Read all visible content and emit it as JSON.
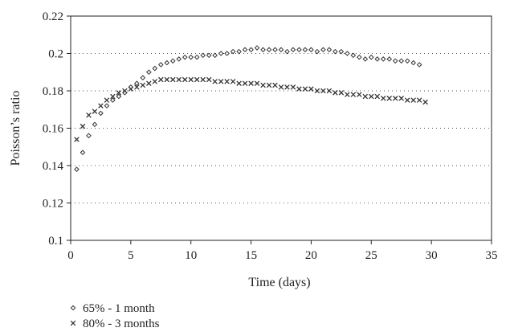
{
  "chart_data": {
    "type": "scatter",
    "xlabel": "Time (days)",
    "ylabel": "Poisson’s ratio",
    "xlim": [
      0,
      35
    ],
    "ylim": [
      0.1,
      0.22
    ],
    "xticks": [
      0,
      5,
      10,
      15,
      20,
      25,
      30,
      35
    ],
    "yticks": [
      0.1,
      0.12,
      0.14,
      0.16,
      0.18,
      0.2,
      0.22
    ],
    "xtick_labels": [
      "0",
      "5",
      "10",
      "15",
      "20",
      "25",
      "30",
      "35"
    ],
    "ytick_labels": [
      "0.1",
      "0.12",
      "0.14",
      "0.16",
      "0.18",
      "0.2",
      "0.22"
    ],
    "grid": "horizontal dotted",
    "legend_position": "bottom-left",
    "series": [
      {
        "name": "65% - 1 month",
        "marker": "diamond",
        "color": "#333333",
        "x": [
          0.5,
          1.0,
          1.5,
          2.0,
          2.5,
          3.0,
          3.5,
          4.0,
          4.5,
          5.0,
          5.5,
          6.0,
          6.5,
          7.0,
          7.5,
          8.0,
          8.5,
          9.0,
          9.5,
          10.0,
          10.5,
          11.0,
          11.5,
          12.0,
          12.5,
          13.0,
          13.5,
          14.0,
          14.5,
          15.0,
          15.5,
          16.0,
          16.5,
          17.0,
          17.5,
          18.0,
          18.5,
          19.0,
          19.5,
          20.0,
          20.5,
          21.0,
          21.5,
          22.0,
          22.5,
          23.0,
          23.5,
          24.0,
          24.5,
          25.0,
          25.5,
          26.0,
          26.5,
          27.0,
          27.5,
          28.0,
          28.5,
          29.0
        ],
        "y": [
          0.138,
          0.147,
          0.156,
          0.162,
          0.168,
          0.172,
          0.175,
          0.177,
          0.179,
          0.182,
          0.184,
          0.187,
          0.19,
          0.192,
          0.194,
          0.195,
          0.196,
          0.197,
          0.198,
          0.198,
          0.198,
          0.199,
          0.199,
          0.199,
          0.2,
          0.2,
          0.201,
          0.201,
          0.202,
          0.202,
          0.203,
          0.202,
          0.202,
          0.202,
          0.202,
          0.201,
          0.202,
          0.202,
          0.202,
          0.202,
          0.201,
          0.202,
          0.202,
          0.201,
          0.201,
          0.2,
          0.199,
          0.198,
          0.197,
          0.198,
          0.197,
          0.197,
          0.197,
          0.196,
          0.196,
          0.196,
          0.195,
          0.194
        ]
      },
      {
        "name": "80% - 3 months",
        "marker": "x",
        "color": "#333333",
        "x": [
          0.5,
          1.0,
          1.5,
          2.0,
          2.5,
          3.0,
          3.5,
          4.0,
          4.5,
          5.0,
          5.5,
          6.0,
          6.5,
          7.0,
          7.5,
          8.0,
          8.5,
          9.0,
          9.5,
          10.0,
          10.5,
          11.0,
          11.5,
          12.0,
          12.5,
          13.0,
          13.5,
          14.0,
          14.5,
          15.0,
          15.5,
          16.0,
          16.5,
          17.0,
          17.5,
          18.0,
          18.5,
          19.0,
          19.5,
          20.0,
          20.5,
          21.0,
          21.5,
          22.0,
          22.5,
          23.0,
          23.5,
          24.0,
          24.5,
          25.0,
          25.5,
          26.0,
          26.5,
          27.0,
          27.5,
          28.0,
          28.5,
          29.0,
          29.5
        ],
        "y": [
          0.154,
          0.161,
          0.167,
          0.169,
          0.172,
          0.175,
          0.177,
          0.179,
          0.18,
          0.181,
          0.182,
          0.183,
          0.184,
          0.185,
          0.186,
          0.186,
          0.186,
          0.186,
          0.186,
          0.186,
          0.186,
          0.186,
          0.186,
          0.185,
          0.185,
          0.185,
          0.185,
          0.184,
          0.184,
          0.184,
          0.184,
          0.183,
          0.183,
          0.183,
          0.182,
          0.182,
          0.182,
          0.181,
          0.181,
          0.181,
          0.18,
          0.18,
          0.18,
          0.179,
          0.179,
          0.178,
          0.178,
          0.178,
          0.177,
          0.177,
          0.177,
          0.176,
          0.176,
          0.176,
          0.176,
          0.175,
          0.175,
          0.175,
          0.174
        ]
      }
    ]
  }
}
